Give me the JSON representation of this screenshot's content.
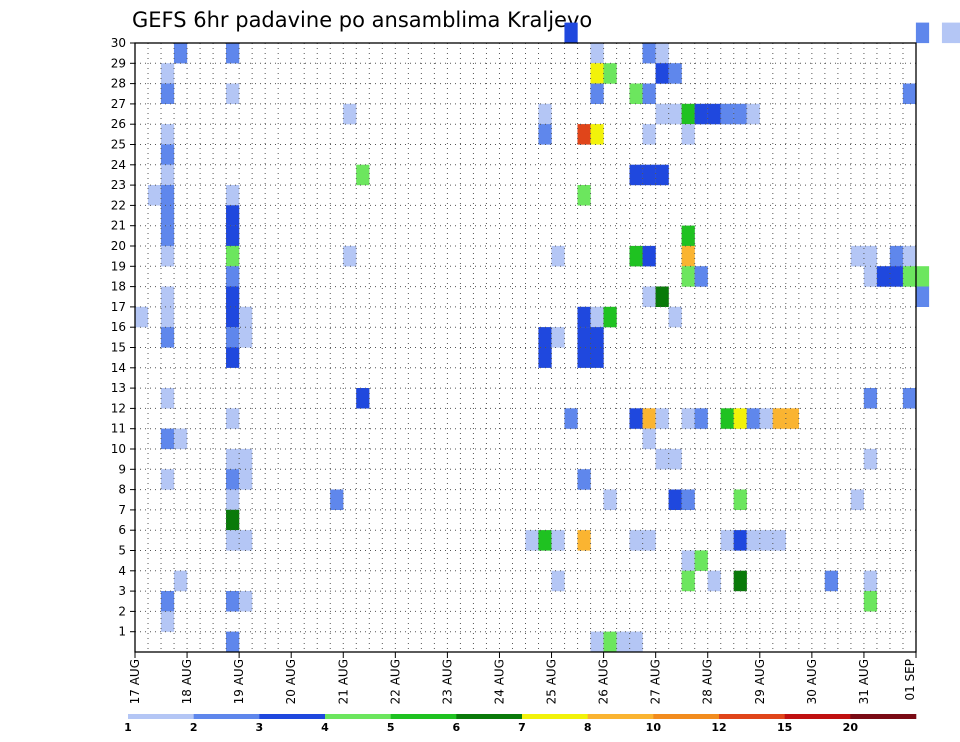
{
  "chart_data": {
    "type": "heatmap",
    "title": "GEFS 6hr padavine po ansamblima Kraljevo",
    "x_tick_labels": [
      "17 AUG",
      "18 AUG",
      "19 AUG",
      "20 AUG",
      "21 AUG",
      "22 AUG",
      "23 AUG",
      "24 AUG",
      "25 AUG",
      "26 AUG",
      "27 AUG",
      "28 AUG",
      "29 AUG",
      "30 AUG",
      "31 AUG",
      "01 SEP"
    ],
    "y_tick_labels": [
      "1",
      "2",
      "3",
      "4",
      "5",
      "6",
      "7",
      "8",
      "9",
      "10",
      "11",
      "12",
      "13",
      "14",
      "15",
      "16",
      "17",
      "18",
      "19",
      "20",
      "21",
      "22",
      "23",
      "24",
      "25",
      "26",
      "27",
      "28",
      "29",
      "30"
    ],
    "xlim": [
      0,
      60
    ],
    "ylim": [
      0,
      30
    ],
    "grid": true,
    "legend_position": "bottom",
    "legend": {
      "labels": [
        "1",
        "2",
        "3",
        "4",
        "5",
        "6",
        "7",
        "8",
        "10",
        "12",
        "15",
        "20"
      ],
      "colors": [
        "#b4c6f5",
        "#5f87ec",
        "#1f48de",
        "#6ce65e",
        "#1fc221",
        "#0a7a0a",
        "#f2f20a",
        "#fab431",
        "#f28c1e",
        "#e0451a",
        "#c01010",
        "#7a0a14"
      ]
    },
    "color_scale": [
      "#b4c6f5",
      "#5f87ec",
      "#1f48de",
      "#6ce65e",
      "#1fc221",
      "#0a7a0a",
      "#f2f20a",
      "#fab431",
      "#f28c1e",
      "#e0451a",
      "#c01010",
      "#7a0a14"
    ],
    "cells": [
      [
        33,
        30,
        3
      ],
      [
        60,
        30,
        2
      ],
      [
        62,
        30,
        1
      ],
      [
        63,
        30,
        1
      ],
      [
        3,
        29,
        2
      ],
      [
        35,
        29,
        1
      ],
      [
        35,
        28,
        7
      ],
      [
        36,
        28,
        4
      ],
      [
        39,
        29,
        2
      ],
      [
        40,
        29,
        1
      ],
      [
        40,
        28,
        3
      ],
      [
        41,
        28,
        2
      ],
      [
        7,
        29,
        2
      ],
      [
        2,
        28,
        1
      ],
      [
        2,
        27,
        2
      ],
      [
        7,
        27,
        1
      ],
      [
        35,
        27,
        2
      ],
      [
        38,
        27,
        4
      ],
      [
        39,
        27,
        2
      ],
      [
        40,
        26,
        1
      ],
      [
        41,
        26,
        1
      ],
      [
        42,
        26,
        5
      ],
      [
        43,
        26,
        3
      ],
      [
        44,
        26,
        3
      ],
      [
        45,
        26,
        2
      ],
      [
        46,
        26,
        2
      ],
      [
        47,
        26,
        1
      ],
      [
        59,
        27,
        2
      ],
      [
        16,
        26,
        1
      ],
      [
        31,
        26,
        1
      ],
      [
        2,
        25,
        1
      ],
      [
        31,
        25,
        2
      ],
      [
        34,
        25,
        10
      ],
      [
        35,
        25,
        7
      ],
      [
        39,
        25,
        1
      ],
      [
        42,
        25,
        1
      ],
      [
        2,
        24,
        2
      ],
      [
        2,
        23,
        1
      ],
      [
        17,
        23,
        4
      ],
      [
        38,
        23,
        3
      ],
      [
        39,
        23,
        3
      ],
      [
        40,
        23,
        3
      ],
      [
        1,
        22,
        1
      ],
      [
        2,
        22,
        2
      ],
      [
        7,
        22,
        1
      ],
      [
        34,
        22,
        4
      ],
      [
        2,
        21,
        2
      ],
      [
        7,
        21,
        3
      ],
      [
        2,
        20,
        2
      ],
      [
        7,
        20,
        3
      ],
      [
        42,
        20,
        5
      ],
      [
        2,
        19,
        1
      ],
      [
        7,
        19,
        4
      ],
      [
        16,
        19,
        1
      ],
      [
        32,
        19,
        1
      ],
      [
        38,
        19,
        5
      ],
      [
        39,
        19,
        3
      ],
      [
        42,
        19,
        8
      ],
      [
        55,
        19,
        1
      ],
      [
        56,
        19,
        1
      ],
      [
        58,
        19,
        2
      ],
      [
        59,
        19,
        1
      ],
      [
        7,
        18,
        2
      ],
      [
        42,
        18,
        4
      ],
      [
        43,
        18,
        2
      ],
      [
        56,
        18,
        1
      ],
      [
        57,
        18,
        3
      ],
      [
        58,
        18,
        3
      ],
      [
        59,
        18,
        4
      ],
      [
        60,
        18,
        4
      ],
      [
        2,
        17,
        1
      ],
      [
        7,
        17,
        3
      ],
      [
        39,
        17,
        1
      ],
      [
        40,
        17,
        6
      ],
      [
        60,
        17,
        2
      ],
      [
        0,
        16,
        1
      ],
      [
        2,
        16,
        1
      ],
      [
        7,
        16,
        3
      ],
      [
        8,
        16,
        1
      ],
      [
        34,
        16,
        3
      ],
      [
        35,
        16,
        1
      ],
      [
        36,
        16,
        5
      ],
      [
        41,
        16,
        1
      ],
      [
        2,
        15,
        2
      ],
      [
        7,
        15,
        2
      ],
      [
        8,
        15,
        1
      ],
      [
        31,
        15,
        3
      ],
      [
        32,
        15,
        1
      ],
      [
        34,
        15,
        3
      ],
      [
        35,
        15,
        3
      ],
      [
        7,
        14,
        3
      ],
      [
        31,
        14,
        3
      ],
      [
        34,
        14,
        3
      ],
      [
        35,
        14,
        3
      ],
      [
        2,
        12,
        1
      ],
      [
        17,
        12,
        3
      ],
      [
        56,
        12,
        2
      ],
      [
        59,
        12,
        2
      ],
      [
        7,
        11,
        1
      ],
      [
        33,
        11,
        2
      ],
      [
        38,
        11,
        3
      ],
      [
        39,
        11,
        8
      ],
      [
        40,
        11,
        1
      ],
      [
        42,
        11,
        1
      ],
      [
        43,
        11,
        2
      ],
      [
        45,
        11,
        5
      ],
      [
        46,
        11,
        7
      ],
      [
        47,
        11,
        2
      ],
      [
        48,
        11,
        1
      ],
      [
        49,
        11,
        8
      ],
      [
        50,
        11,
        8
      ],
      [
        2,
        10,
        2
      ],
      [
        3,
        10,
        1
      ],
      [
        39,
        10,
        1
      ],
      [
        7,
        9,
        1
      ],
      [
        8,
        9,
        1
      ],
      [
        40,
        9,
        1
      ],
      [
        41,
        9,
        1
      ],
      [
        56,
        9,
        1
      ],
      [
        2,
        8,
        1
      ],
      [
        7,
        8,
        2
      ],
      [
        8,
        8,
        1
      ],
      [
        34,
        8,
        2
      ],
      [
        7,
        7,
        1
      ],
      [
        15,
        7,
        2
      ],
      [
        36,
        7,
        1
      ],
      [
        41,
        7,
        3
      ],
      [
        42,
        7,
        2
      ],
      [
        46,
        7,
        4
      ],
      [
        55,
        7,
        1
      ],
      [
        7,
        6,
        6
      ],
      [
        7,
        5,
        1
      ],
      [
        8,
        5,
        1
      ],
      [
        30,
        5,
        1
      ],
      [
        31,
        5,
        5
      ],
      [
        32,
        5,
        1
      ],
      [
        34,
        5,
        8
      ],
      [
        38,
        5,
        1
      ],
      [
        39,
        5,
        1
      ],
      [
        45,
        5,
        1
      ],
      [
        46,
        5,
        3
      ],
      [
        47,
        5,
        1
      ],
      [
        48,
        5,
        1
      ],
      [
        49,
        5,
        1
      ],
      [
        42,
        4,
        1
      ],
      [
        43,
        4,
        4
      ],
      [
        3,
        3,
        1
      ],
      [
        32,
        3,
        1
      ],
      [
        42,
        3,
        4
      ],
      [
        44,
        3,
        1
      ],
      [
        46,
        3,
        6
      ],
      [
        53,
        3,
        2
      ],
      [
        56,
        3,
        1
      ],
      [
        2,
        2,
        2
      ],
      [
        7,
        2,
        2
      ],
      [
        8,
        2,
        1
      ],
      [
        56,
        2,
        4
      ],
      [
        2,
        1,
        1
      ],
      [
        7,
        0,
        2
      ],
      [
        35,
        0,
        1
      ],
      [
        36,
        0,
        4
      ],
      [
        37,
        0,
        1
      ],
      [
        38,
        0,
        1
      ]
    ]
  }
}
